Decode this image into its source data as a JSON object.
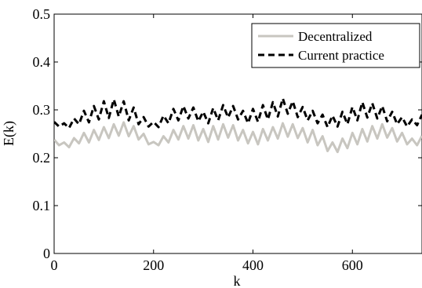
{
  "chart_data": {
    "type": "line",
    "xlabel": "k",
    "ylabel": "E(k)",
    "xlim": [
      0,
      740
    ],
    "ylim": [
      0,
      0.5
    ],
    "x_ticks": [
      0,
      200,
      400,
      600
    ],
    "y_ticks": [
      0,
      0.1,
      0.2,
      0.3,
      0.4,
      0.5
    ],
    "x_tick_labels": [
      "0",
      "200",
      "400",
      "600"
    ],
    "y_tick_labels": [
      "0",
      "0.1",
      "0.2",
      "0.3",
      "0.4",
      "0.5"
    ],
    "legend_position": "top-right",
    "grid": false,
    "series": [
      {
        "name": "Decentralized",
        "color": "#c8c6c0",
        "style": "solid",
        "x": [
          0,
          10,
          20,
          30,
          40,
          50,
          60,
          70,
          80,
          90,
          100,
          110,
          120,
          130,
          140,
          150,
          160,
          170,
          180,
          190,
          200,
          210,
          220,
          230,
          240,
          250,
          260,
          270,
          280,
          290,
          300,
          310,
          320,
          330,
          340,
          350,
          360,
          370,
          380,
          390,
          400,
          410,
          420,
          430,
          440,
          450,
          460,
          470,
          480,
          490,
          500,
          510,
          520,
          530,
          540,
          550,
          560,
          570,
          580,
          590,
          600,
          610,
          620,
          630,
          640,
          650,
          660,
          670,
          680,
          690,
          700,
          710,
          720,
          730,
          740
        ],
        "values": [
          0.238,
          0.226,
          0.232,
          0.222,
          0.241,
          0.23,
          0.252,
          0.232,
          0.258,
          0.237,
          0.264,
          0.241,
          0.27,
          0.246,
          0.274,
          0.245,
          0.266,
          0.238,
          0.25,
          0.228,
          0.233,
          0.226,
          0.245,
          0.232,
          0.258,
          0.238,
          0.266,
          0.24,
          0.268,
          0.236,
          0.26,
          0.233,
          0.266,
          0.238,
          0.27,
          0.242,
          0.268,
          0.236,
          0.258,
          0.23,
          0.254,
          0.228,
          0.26,
          0.236,
          0.264,
          0.24,
          0.272,
          0.244,
          0.27,
          0.241,
          0.262,
          0.232,
          0.258,
          0.226,
          0.245,
          0.214,
          0.232,
          0.212,
          0.24,
          0.22,
          0.252,
          0.228,
          0.26,
          0.234,
          0.266,
          0.24,
          0.27,
          0.242,
          0.262,
          0.234,
          0.252,
          0.228,
          0.24,
          0.226,
          0.246
        ]
      },
      {
        "name": "Current practice",
        "color": "#000000",
        "style": "dashed",
        "x": [
          0,
          10,
          20,
          30,
          40,
          50,
          60,
          70,
          80,
          90,
          100,
          110,
          120,
          130,
          140,
          150,
          160,
          170,
          180,
          190,
          200,
          210,
          220,
          230,
          240,
          250,
          260,
          270,
          280,
          290,
          300,
          310,
          320,
          330,
          340,
          350,
          360,
          370,
          380,
          390,
          400,
          410,
          420,
          430,
          440,
          450,
          460,
          470,
          480,
          490,
          500,
          510,
          520,
          530,
          540,
          550,
          560,
          570,
          580,
          590,
          600,
          610,
          620,
          630,
          640,
          650,
          660,
          670,
          680,
          690,
          700,
          710,
          720,
          730,
          740
        ],
        "values": [
          0.275,
          0.265,
          0.272,
          0.262,
          0.282,
          0.27,
          0.298,
          0.274,
          0.308,
          0.28,
          0.318,
          0.283,
          0.322,
          0.286,
          0.318,
          0.278,
          0.305,
          0.27,
          0.285,
          0.265,
          0.275,
          0.264,
          0.288,
          0.272,
          0.302,
          0.278,
          0.308,
          0.282,
          0.305,
          0.276,
          0.296,
          0.272,
          0.304,
          0.278,
          0.31,
          0.284,
          0.308,
          0.28,
          0.298,
          0.272,
          0.302,
          0.275,
          0.31,
          0.28,
          0.316,
          0.286,
          0.324,
          0.292,
          0.318,
          0.285,
          0.306,
          0.278,
          0.298,
          0.272,
          0.29,
          0.264,
          0.288,
          0.265,
          0.296,
          0.27,
          0.306,
          0.278,
          0.316,
          0.284,
          0.314,
          0.282,
          0.308,
          0.276,
          0.296,
          0.27,
          0.285,
          0.265,
          0.28,
          0.268,
          0.29
        ]
      }
    ]
  }
}
